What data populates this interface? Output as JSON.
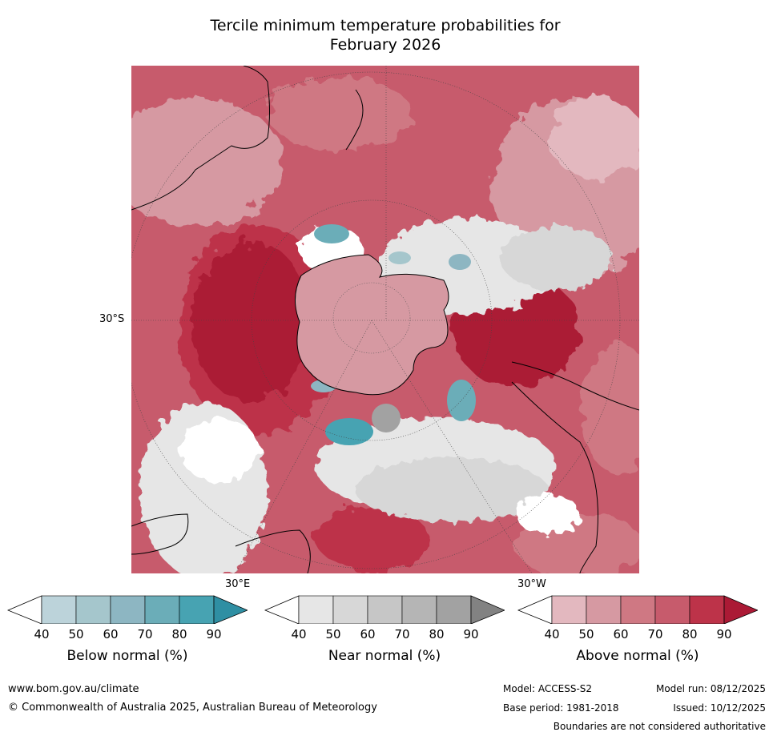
{
  "title_line1": "Tercile minimum temperature probabilities for",
  "title_line2": "February 2026",
  "map": {
    "lat_label": "30°S",
    "lon_label_east": "30°E",
    "lon_label_west": "30°W"
  },
  "colorbars": [
    {
      "label": "Below normal (%)",
      "ticks": [
        "40",
        "50",
        "60",
        "70",
        "80",
        "90"
      ],
      "colors": [
        "#ffffff",
        "#bcd3da",
        "#a5c6cc",
        "#8db6c2",
        "#6badb8",
        "#47a3b2",
        "#2f8fa3"
      ]
    },
    {
      "label": "Near normal (%)",
      "ticks": [
        "40",
        "50",
        "60",
        "70",
        "80",
        "90"
      ],
      "colors": [
        "#ffffff",
        "#e6e6e6",
        "#d7d7d7",
        "#c6c6c6",
        "#b5b5b5",
        "#a2a2a2",
        "#828282"
      ]
    },
    {
      "label": "Above normal (%)",
      "ticks": [
        "40",
        "50",
        "60",
        "70",
        "80",
        "90"
      ],
      "colors": [
        "#ffffff",
        "#e3b8bf",
        "#d699a2",
        "#cf7883",
        "#c75b6c",
        "#bd3349",
        "#ab1a35"
      ]
    }
  ],
  "footer": {
    "website": "www.bom.gov.au/climate",
    "copyright": "© Commonwealth of Australia 2025, Australian Bureau of Meteorology",
    "model": "Model: ACCESS-S2",
    "base_period": "Base period: 1981-2018",
    "model_run": "Model run: 08/12/2025",
    "issued": "Issued: 10/12/2025",
    "disclaimer": "Boundaries are not considered authoritative"
  }
}
